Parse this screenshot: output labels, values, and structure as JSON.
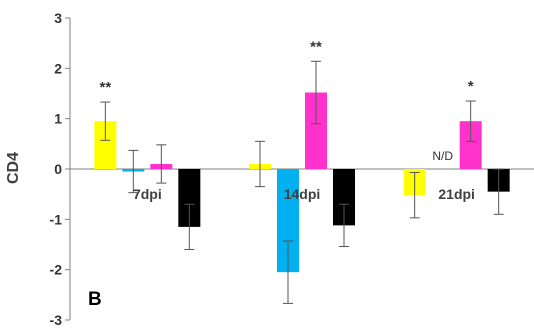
{
  "chart_data": {
    "type": "bar",
    "panel_label": "B",
    "ylabel": "CD4",
    "xlabel": "",
    "ylim": [
      -3,
      3
    ],
    "yticks": [
      -3,
      -2,
      -1,
      0,
      1,
      2,
      3
    ],
    "categories": [
      "7dpi",
      "14dpi",
      "21dpi"
    ],
    "series": [
      {
        "color": "#ffff00",
        "values": [
          0.95,
          0.1,
          -0.52
        ],
        "errors": [
          0.38,
          0.45,
          0.45
        ]
      },
      {
        "color": "#00b0f0",
        "values": [
          -0.05,
          -2.05,
          null
        ],
        "errors": [
          0.42,
          0.62,
          null
        ]
      },
      {
        "color": "#ff33cc",
        "values": [
          0.1,
          1.52,
          0.95
        ],
        "errors": [
          0.38,
          0.62,
          0.4
        ]
      },
      {
        "color": "#000000",
        "values": [
          -1.15,
          -1.12,
          -0.45
        ],
        "errors": [
          0.45,
          0.42,
          0.45
        ]
      }
    ],
    "annotations": [
      {
        "category": 0,
        "series": 0,
        "text": "**"
      },
      {
        "category": 1,
        "series": 2,
        "text": "**"
      },
      {
        "category": 2,
        "series": 2,
        "text": "*"
      },
      {
        "category": 2,
        "series": 1,
        "text": "N/D"
      }
    ],
    "grid": false,
    "legend": "none"
  }
}
